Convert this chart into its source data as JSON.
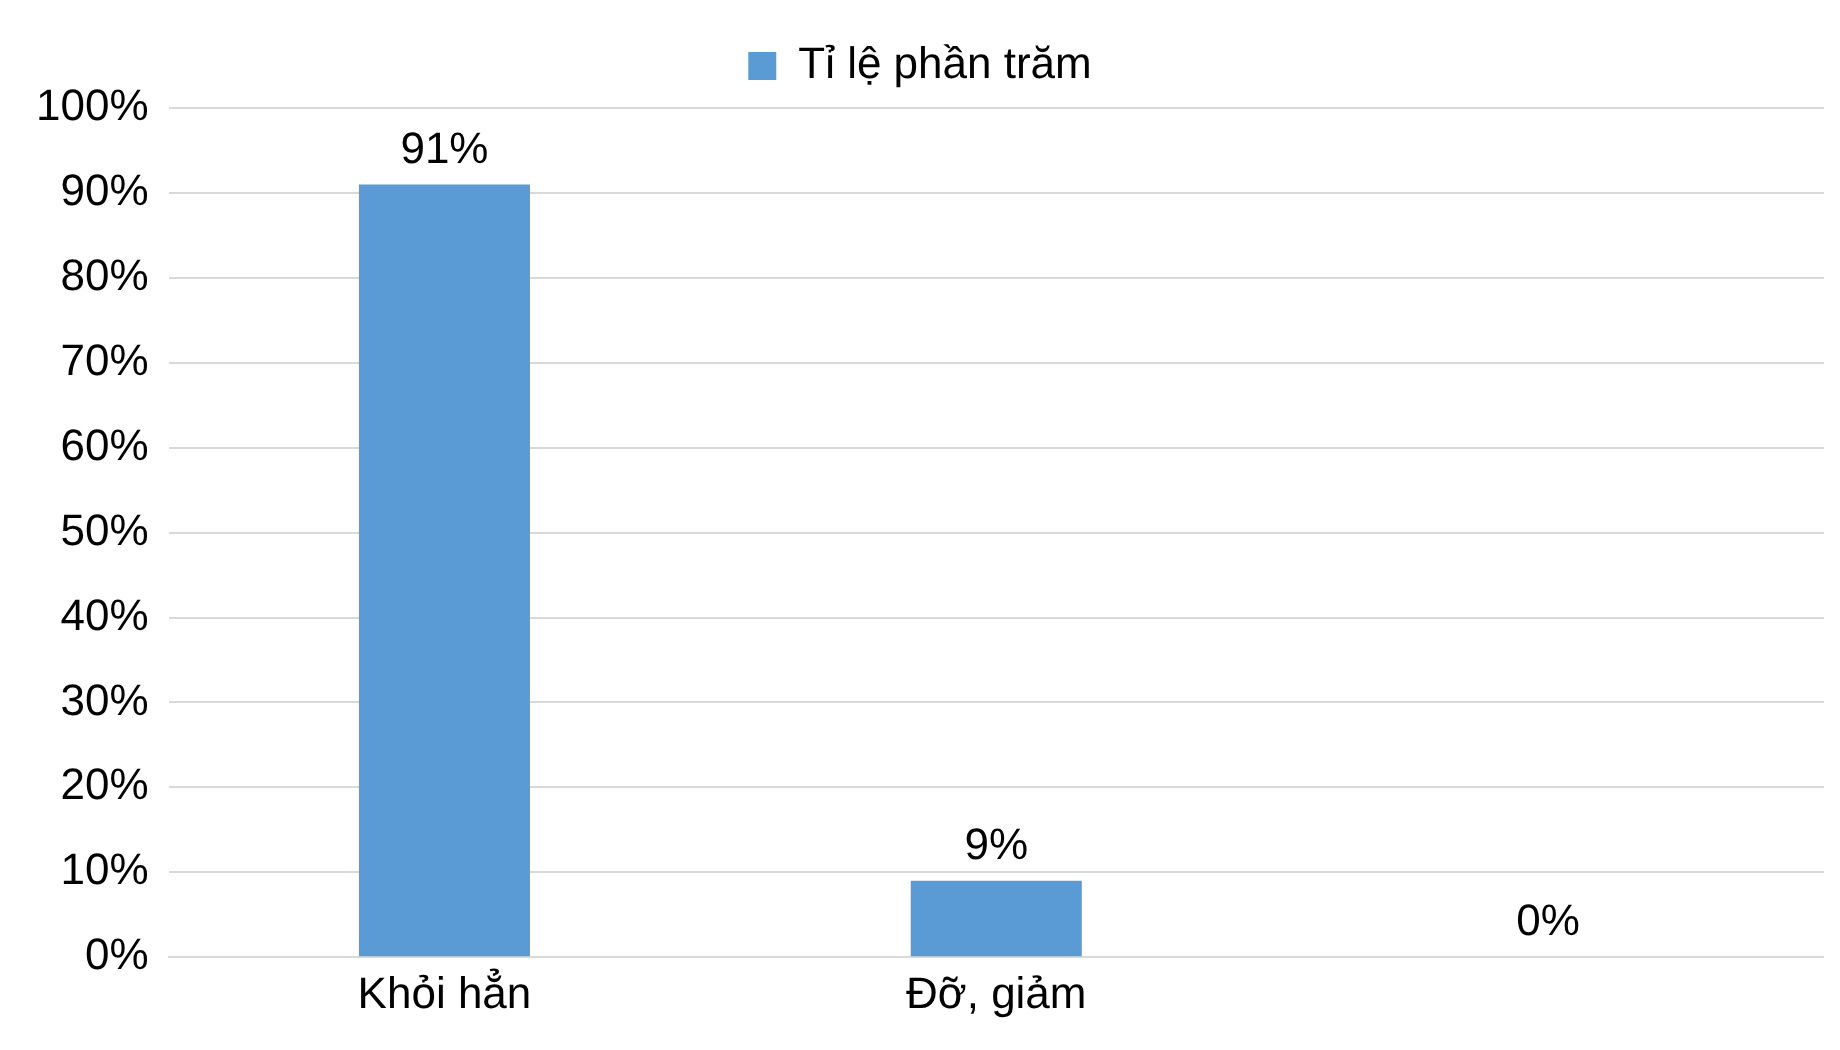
{
  "chart_data": {
    "type": "bar",
    "categories": [
      "Khỏi hẳn",
      "Đỡ, giảm",
      null
    ],
    "series": [
      {
        "name": "Tỉ lệ phần trăm",
        "color": "#5b9bd5",
        "values": [
          91,
          9,
          0
        ],
        "value_labels": [
          "91%",
          "9%",
          "0%"
        ]
      }
    ],
    "ylim": [
      0,
      100
    ],
    "yticks": [
      {
        "value": 0,
        "label": "0%"
      },
      {
        "value": 10,
        "label": "10%"
      },
      {
        "value": 20,
        "label": "20%"
      },
      {
        "value": 30,
        "label": "30%"
      },
      {
        "value": 40,
        "label": "40%"
      },
      {
        "value": 50,
        "label": "50%"
      },
      {
        "value": 60,
        "label": "60%"
      },
      {
        "value": 70,
        "label": "70%"
      },
      {
        "value": 80,
        "label": "80%"
      },
      {
        "value": 90,
        "label": "90%"
      },
      {
        "value": 100,
        "label": "100%"
      }
    ],
    "grid": "y",
    "legend": "top"
  }
}
